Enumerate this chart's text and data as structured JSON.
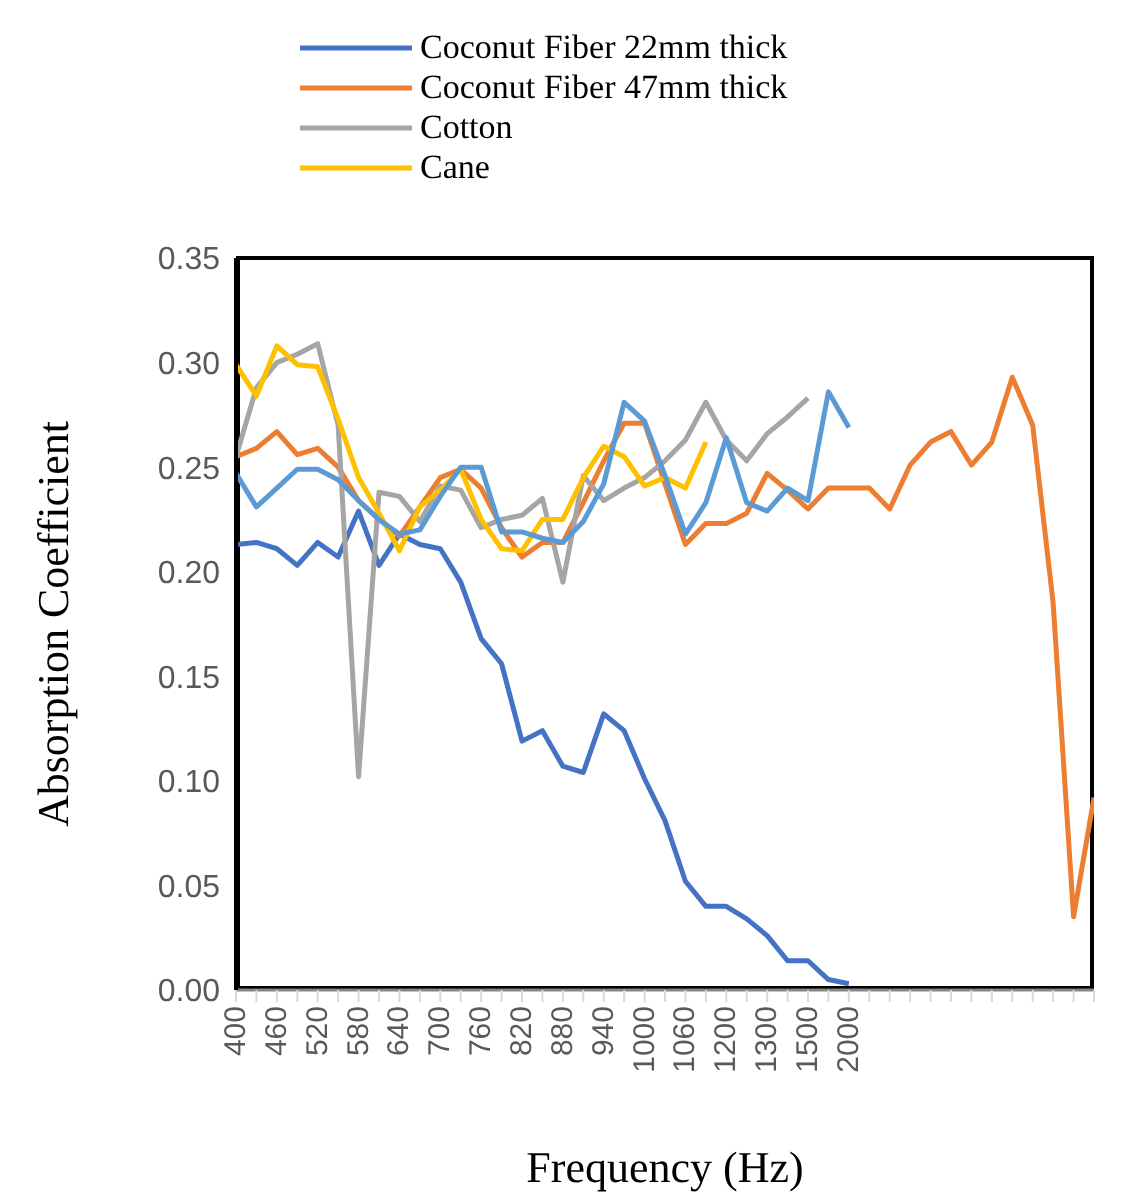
{
  "chart_data": {
    "type": "line",
    "xlabel": "Frequency (Hz)",
    "ylabel": "Absorption Coefficient",
    "categories": [
      "400",
      null,
      "460",
      null,
      "520",
      null,
      "580",
      null,
      "640",
      null,
      "700",
      null,
      "760",
      null,
      "820",
      null,
      "880",
      null,
      "940",
      null,
      "1000",
      null,
      "1060",
      null,
      "1200",
      null,
      "1300",
      null,
      "1500",
      null,
      "2000",
      null,
      null,
      null,
      null,
      null,
      null,
      null,
      null,
      null,
      null,
      null,
      null
    ],
    "ylim": [
      0,
      0.35
    ],
    "yticks": [
      {
        "value": 0,
        "label": "0.00"
      },
      {
        "value": 0.05,
        "label": "0.05"
      },
      {
        "value": 0.1,
        "label": "0.10"
      },
      {
        "value": 0.15,
        "label": "0.15"
      },
      {
        "value": 0.2,
        "label": "0.20"
      },
      {
        "value": 0.25,
        "label": "0.25"
      },
      {
        "value": 0.3,
        "label": "0.30"
      },
      {
        "value": 0.35,
        "label": "0.35"
      }
    ],
    "legend": "top",
    "grid": false,
    "marker": "none",
    "line_style": "solid",
    "series": [
      {
        "name": "Coconut Fiber 22mm thick",
        "color": "#4472c4",
        "values": [
          0.213,
          0.214,
          0.211,
          0.203,
          0.214,
          0.207,
          0.229,
          0.203,
          0.218,
          0.213,
          0.211,
          0.195,
          0.168,
          0.156,
          0.119,
          0.124,
          0.107,
          0.104,
          0.132,
          0.124,
          0.101,
          0.081,
          0.052,
          0.04,
          0.04,
          0.034,
          0.026,
          0.014,
          0.014,
          0.005,
          0.003,
          null,
          null,
          null,
          null,
          null,
          null,
          null,
          null,
          null,
          null,
          null,
          null
        ]
      },
      {
        "name": "Coconut Fiber 47mm thick",
        "color": "#ed7d31",
        "values": [
          0.255,
          0.259,
          0.267,
          0.256,
          0.259,
          0.25,
          0.234,
          0.225,
          0.217,
          0.231,
          0.245,
          0.249,
          0.24,
          0.221,
          0.207,
          0.214,
          0.214,
          0.233,
          0.253,
          0.271,
          0.271,
          0.242,
          0.213,
          0.223,
          0.223,
          0.228,
          0.247,
          0.239,
          0.23,
          0.24,
          0.24,
          0.24,
          0.23,
          0.251,
          0.262,
          0.267,
          0.251,
          0.262,
          0.293,
          0.27,
          0.185,
          0.035,
          0.092
        ]
      },
      {
        "name": "Cotton",
        "color": "#a5a5a5",
        "values": [
          0.255,
          0.288,
          0.3,
          0.304,
          0.309,
          0.27,
          0.102,
          0.238,
          0.236,
          0.224,
          0.241,
          0.239,
          0.221,
          0.225,
          0.227,
          0.235,
          0.195,
          0.246,
          0.234,
          0.24,
          0.245,
          0.253,
          0.263,
          0.281,
          0.263,
          0.253,
          0.266,
          0.274,
          0.283,
          null,
          null,
          null,
          null,
          null,
          null,
          null,
          null,
          null,
          null,
          null,
          null,
          null,
          null
        ]
      },
      {
        "name": "Cane",
        "color": "#ffc000",
        "values": [
          0.299,
          0.284,
          0.308,
          0.299,
          0.298,
          0.273,
          0.245,
          0.228,
          0.21,
          0.231,
          0.239,
          0.249,
          0.225,
          0.211,
          0.21,
          0.225,
          0.225,
          0.245,
          0.26,
          0.255,
          0.241,
          0.245,
          0.24,
          0.262,
          null,
          null,
          null,
          null,
          null,
          null,
          null,
          null,
          null,
          null,
          null,
          null,
          null,
          null,
          null,
          null,
          null,
          null,
          null
        ]
      },
      {
        "color": "#5b9bd5",
        "values": [
          0.247,
          0.231,
          0.24,
          0.249,
          0.249,
          0.244,
          0.234,
          0.225,
          0.218,
          0.22,
          0.236,
          0.25,
          0.25,
          0.219,
          0.219,
          0.216,
          0.214,
          0.224,
          0.242,
          0.281,
          0.272,
          0.246,
          0.218,
          0.233,
          0.264,
          0.233,
          0.229,
          0.24,
          0.234,
          0.286,
          0.269,
          null,
          null,
          null,
          null,
          null,
          null,
          null,
          null,
          null,
          null,
          null,
          null
        ]
      }
    ]
  }
}
